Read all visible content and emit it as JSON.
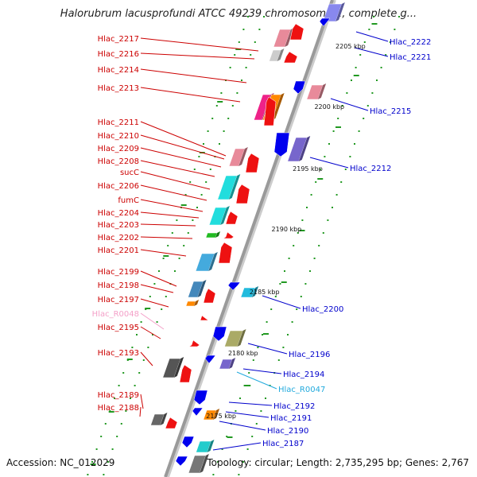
{
  "title": "Halorubrum lacusprofundi ATCC 49239 chromosome 1, complete g...",
  "accession": "Accession: NC_012029",
  "topology": "Topology: circular; Length: 2,735,295 bp; Genes: 2,767",
  "colors": {
    "backbone": "#9a9a9a",
    "left_label": "#cc0000",
    "right_label": "#0000cc",
    "rna_label": "#f4a0c8",
    "ncrna_label": "#22aadd",
    "tick_dots": "#229922"
  },
  "left_labels": [
    {
      "text": "Hlac_2217",
      "kind": "gene"
    },
    {
      "text": "Hlac_2216",
      "kind": "gene"
    },
    {
      "text": "Hlac_2214",
      "kind": "gene"
    },
    {
      "text": "Hlac_2213",
      "kind": "gene"
    },
    {
      "text": "Hlac_2211",
      "kind": "gene"
    },
    {
      "text": "Hlac_2210",
      "kind": "gene"
    },
    {
      "text": "Hlac_2209",
      "kind": "gene"
    },
    {
      "text": "Hlac_2208",
      "kind": "gene"
    },
    {
      "text": "sucC",
      "kind": "gene"
    },
    {
      "text": "Hlac_2206",
      "kind": "gene"
    },
    {
      "text": "fumC",
      "kind": "gene"
    },
    {
      "text": "Hlac_2204",
      "kind": "gene"
    },
    {
      "text": "Hlac_2203",
      "kind": "gene"
    },
    {
      "text": "Hlac_2202",
      "kind": "gene"
    },
    {
      "text": "Hlac_2201",
      "kind": "gene"
    },
    {
      "text": "Hlac_2199",
      "kind": "gene"
    },
    {
      "text": "Hlac_2198",
      "kind": "gene"
    },
    {
      "text": "Hlac_2197",
      "kind": "gene"
    },
    {
      "text": "Hlac_R0048",
      "kind": "rna"
    },
    {
      "text": "Hlac_2195",
      "kind": "gene"
    },
    {
      "text": "Hlac_2193",
      "kind": "gene"
    },
    {
      "text": "Hlac_2189",
      "kind": "gene"
    },
    {
      "text": "Hlac_2188",
      "kind": "gene"
    }
  ],
  "right_labels": [
    {
      "text": "Hlac_2222",
      "kind": "gene"
    },
    {
      "text": "Hlac_2221",
      "kind": "gene"
    },
    {
      "text": "Hlac_2215",
      "kind": "gene"
    },
    {
      "text": "Hlac_2212",
      "kind": "gene"
    },
    {
      "text": "Hlac_2200",
      "kind": "gene"
    },
    {
      "text": "Hlac_2196",
      "kind": "gene"
    },
    {
      "text": "Hlac_2194",
      "kind": "gene"
    },
    {
      "text": "Hlac_R0047",
      "kind": "ncrna"
    },
    {
      "text": "Hlac_2192",
      "kind": "gene"
    },
    {
      "text": "Hlac_2191",
      "kind": "gene"
    },
    {
      "text": "Hlac_2190",
      "kind": "gene"
    },
    {
      "text": "Hlac_2187",
      "kind": "gene"
    }
  ],
  "scale_labels": [
    "2205 kbp",
    "2200 kbp",
    "2195 kbp",
    "2190 kbp",
    "2185 kbp",
    "2180 kbp",
    "2175 kbp"
  ]
}
